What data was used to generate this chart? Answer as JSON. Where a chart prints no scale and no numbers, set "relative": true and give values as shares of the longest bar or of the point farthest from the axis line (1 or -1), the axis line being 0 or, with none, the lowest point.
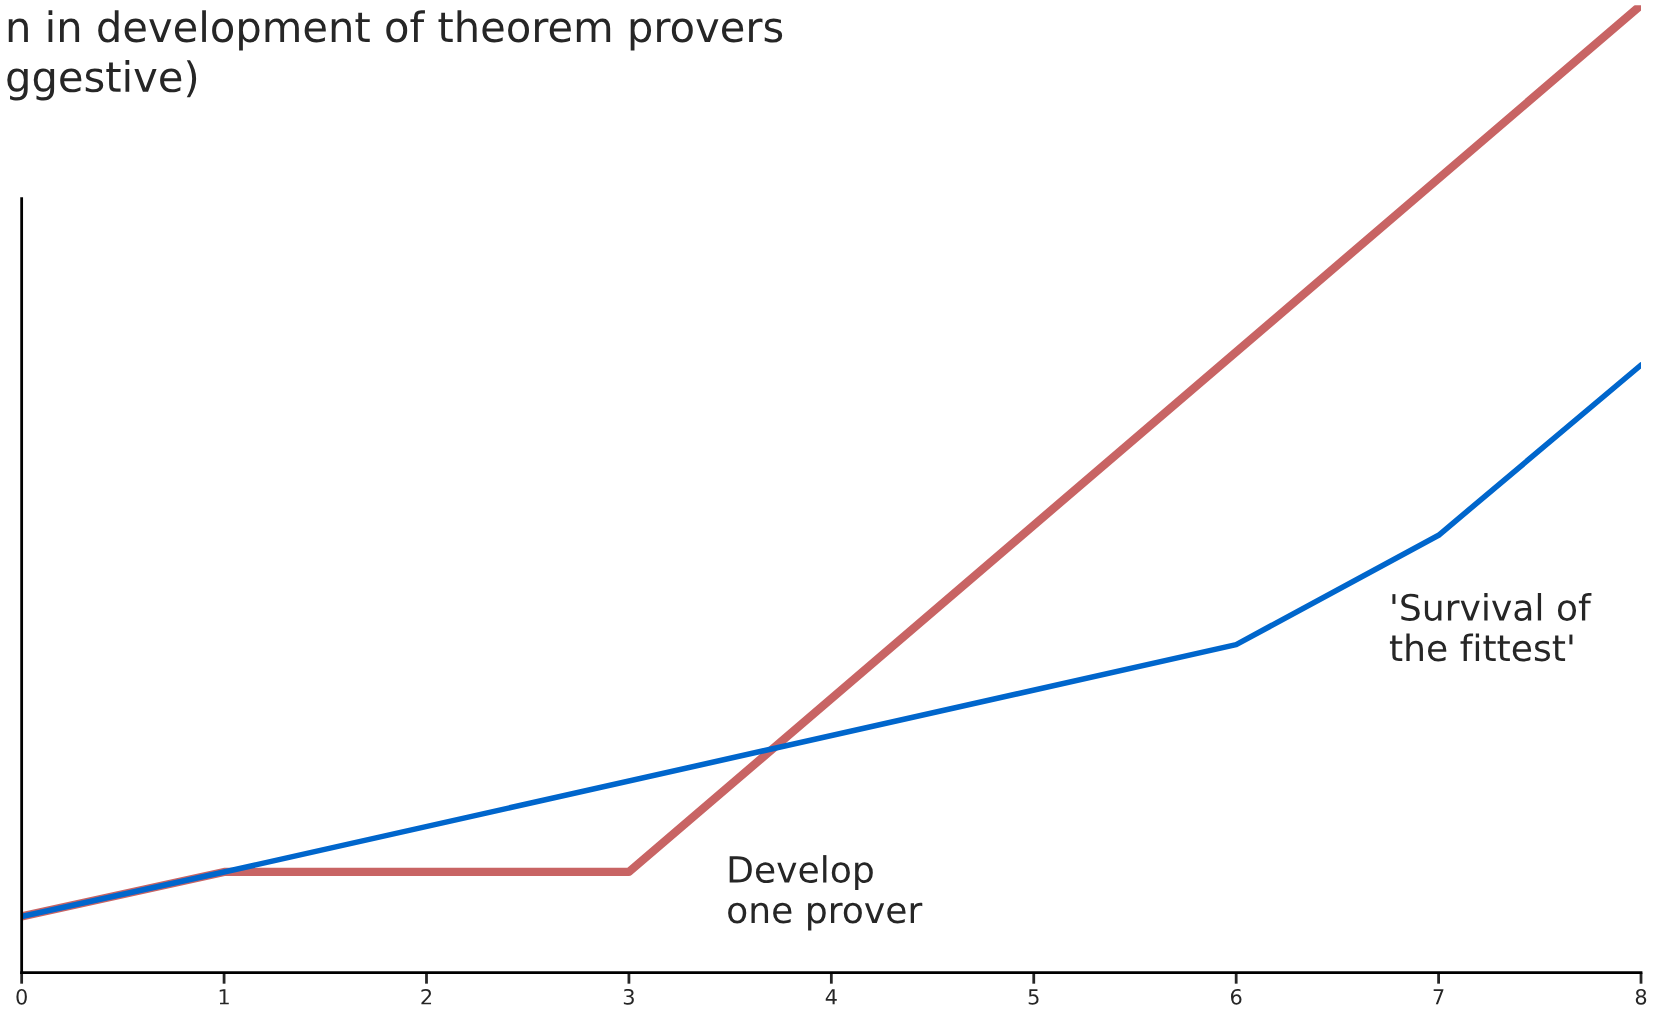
{
  "chart_data": {
    "type": "line",
    "title": "n in development of theorem provers\nggestive)",
    "relative": true,
    "xlim": [
      0,
      8
    ],
    "xticks": [
      0,
      1,
      2,
      3,
      4,
      5,
      6,
      7,
      8
    ],
    "series": [
      {
        "name": "Develop\none prover",
        "color": "#c86464",
        "x": [
          0,
          1,
          3,
          8
        ],
        "values": [
          0.058,
          0.104,
          0.104,
          1
        ]
      },
      {
        "name": "'Survival of\nthe fittest'",
        "color": "#0066cc",
        "x": [
          0,
          1,
          6,
          7,
          8
        ],
        "values": [
          0.058,
          0.104,
          0.339,
          0.452,
          0.628
        ]
      }
    ],
    "grid": false,
    "legend": false,
    "marker": "none",
    "line_style": "solid"
  }
}
